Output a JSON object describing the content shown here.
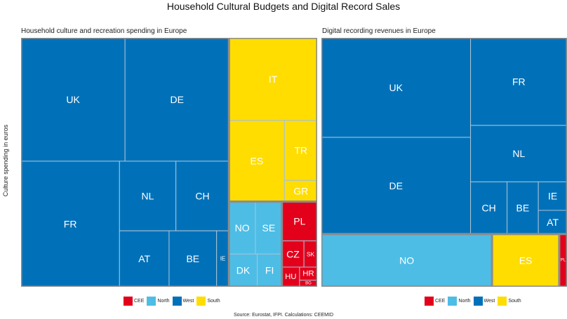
{
  "title": "Household Cultural Budgets and Digital Record Sales",
  "ylabel": "Culture spending in euros",
  "source": "Source: Eurostat, IFPI. Calculations: CEEMID",
  "legend": [
    "CEE",
    "North",
    "West",
    "South"
  ],
  "colors": {
    "CEE": "#e3001b",
    "North": "#4dbde6",
    "West": "#0071b9",
    "South": "#ffdd00"
  },
  "chart_data": [
    {
      "type": "treemap",
      "title": "Household culture and recreation spending in Europe",
      "groups": [
        {
          "name": "West",
          "items": [
            {
              "label": "UK",
              "value": 111
            },
            {
              "label": "DE",
              "value": 111
            },
            {
              "label": "FR",
              "value": 107
            },
            {
              "label": "NL",
              "value": 34
            },
            {
              "label": "CH",
              "value": 32
            },
            {
              "label": "AT",
              "value": 24
            },
            {
              "label": "BE",
              "value": 23
            },
            {
              "label": "IE",
              "value": 6
            }
          ]
        },
        {
          "name": "South",
          "items": [
            {
              "label": "IT",
              "value": 63
            },
            {
              "label": "ES",
              "value": 39
            },
            {
              "label": "TR",
              "value": 17
            },
            {
              "label": "GR",
              "value": 6
            }
          ]
        },
        {
          "name": "North",
          "items": [
            {
              "label": "NO",
              "value": 12
            },
            {
              "label": "SE",
              "value": 12
            },
            {
              "label": "DK",
              "value": 8
            },
            {
              "label": "FI",
              "value": 7
            }
          ]
        },
        {
          "name": "CEE",
          "items": [
            {
              "label": "PL",
              "value": 12
            },
            {
              "label": "CZ",
              "value": 5
            },
            {
              "label": "SK",
              "value": 3
            },
            {
              "label": "HU",
              "value": 3
            },
            {
              "label": "HR",
              "value": 2
            },
            {
              "label": "BG",
              "value": 1
            }
          ]
        }
      ]
    },
    {
      "type": "treemap",
      "title": "Digital recording revenues in Europe",
      "groups": [
        {
          "name": "West",
          "items": [
            {
              "label": "UK",
              "value": 109
            },
            {
              "label": "DE",
              "value": 106
            },
            {
              "label": "FR",
              "value": 62
            },
            {
              "label": "NL",
              "value": 40
            },
            {
              "label": "CH",
              "value": 14
            },
            {
              "label": "BE",
              "value": 12
            },
            {
              "label": "IE",
              "value": 6
            },
            {
              "label": "AT",
              "value": 5
            }
          ]
        },
        {
          "name": "North",
          "items": [
            {
              "label": "NO",
              "value": 66
            }
          ]
        },
        {
          "name": "South",
          "items": [
            {
              "label": "ES",
              "value": 26
            }
          ]
        },
        {
          "name": "CEE",
          "items": [
            {
              "label": "PL",
              "value": 3
            }
          ]
        }
      ]
    }
  ]
}
